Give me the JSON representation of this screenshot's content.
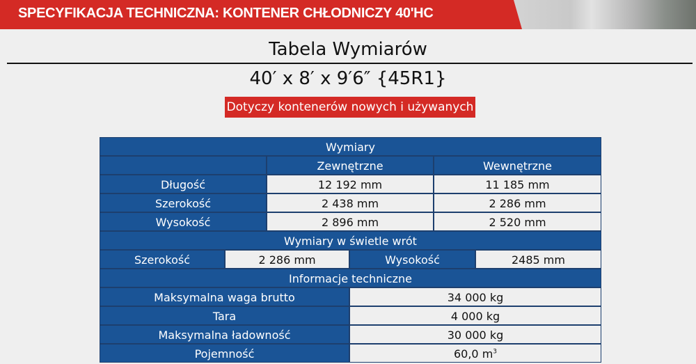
{
  "banner": {
    "title": "SPECYFIKACJA TECHNICZNA: KONTENER CHŁODNICZY 40'HC"
  },
  "title": "Tabela Wymiarów",
  "subtitle": "40′ x 8′ x 9′6″ {45R1}",
  "badge": "Dotyczy kontenerów nowych i używanych",
  "colors": {
    "red": "#d42a25",
    "blue": "#1a5496"
  },
  "table": {
    "section1": "Wymiary",
    "col_ext": "Zewnętrzne",
    "col_int": "Wewnętrzne",
    "rows": [
      {
        "label": "Długość",
        "ext": "12 192 mm",
        "int": "11 185 mm"
      },
      {
        "label": "Szerokość",
        "ext": "2 438 mm",
        "int": "2 286 mm"
      },
      {
        "label": "Wysokość",
        "ext": "2 896 mm",
        "int": "2 520 mm"
      }
    ],
    "section2": "Wymiary w świetle wrót",
    "gate": {
      "width_label": "Szerokość",
      "width": "2 286 mm",
      "height_label": "Wysokość",
      "height": "2485 mm"
    },
    "section3": "Informacje techniczne",
    "info": [
      {
        "label": "Maksymalna waga brutto",
        "value": "34 000 kg"
      },
      {
        "label": "Tara",
        "value": "4 000 kg"
      },
      {
        "label": "Maksymalna ładowność",
        "value": "30 000 kg"
      },
      {
        "label": "Pojemność",
        "value": "60,0 m",
        "unit_sup": "3"
      }
    ]
  }
}
